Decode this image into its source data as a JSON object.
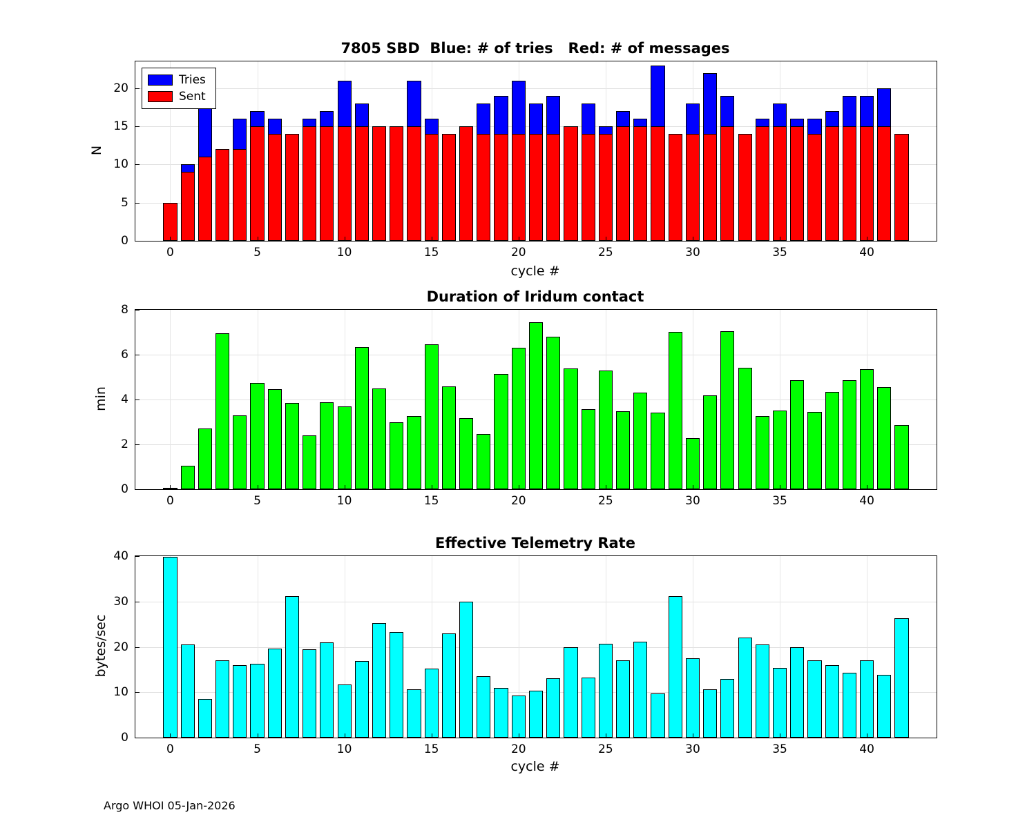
{
  "footer": "Argo WHOI 05-Jan-2026",
  "chart_data": [
    {
      "type": "bar",
      "bar_mode": "overlay",
      "title": "7805 SBD  Blue: # of tries   Red: # of messages",
      "xlabel": "cycle #",
      "ylabel": "N",
      "grid": true,
      "legend_position": "top-left",
      "xlim": [
        -2,
        44
      ],
      "ylim": [
        0,
        23.5
      ],
      "xticks": [
        0,
        5,
        10,
        15,
        20,
        25,
        30,
        35,
        40
      ],
      "yticks": [
        0,
        5,
        10,
        15,
        20
      ],
      "x": [
        0,
        1,
        2,
        3,
        4,
        5,
        6,
        7,
        8,
        9,
        10,
        11,
        12,
        13,
        14,
        15,
        16,
        17,
        18,
        19,
        20,
        21,
        22,
        23,
        24,
        25,
        26,
        27,
        28,
        29,
        30,
        31,
        32,
        33,
        34,
        35,
        36,
        37,
        38,
        39,
        40,
        41,
        42
      ],
      "series": [
        {
          "name": "Tries",
          "color": "#0000FF",
          "values": [
            5,
            10,
            19,
            12,
            16,
            17,
            16,
            14,
            16,
            17,
            21,
            18,
            15,
            15,
            21,
            16,
            14,
            15,
            18,
            19,
            21,
            18,
            19,
            15,
            18,
            15,
            17,
            16,
            23,
            14,
            18,
            22,
            19,
            14,
            16,
            18,
            16,
            16,
            17,
            19,
            19,
            20,
            14
          ]
        },
        {
          "name": "Sent",
          "color": "#FF0000",
          "values": [
            5,
            9,
            11,
            12,
            12,
            15,
            14,
            14,
            15,
            15,
            15,
            15,
            15,
            15,
            15,
            14,
            14,
            15,
            14,
            14,
            14,
            14,
            14,
            15,
            14,
            14,
            15,
            15,
            15,
            14,
            14,
            14,
            15,
            14,
            15,
            15,
            15,
            14,
            15,
            15,
            15,
            15,
            14
          ]
        }
      ]
    },
    {
      "type": "bar",
      "title": "Duration of Iridum contact",
      "xlabel": "",
      "ylabel": "min",
      "grid": true,
      "xlim": [
        -2,
        44
      ],
      "ylim": [
        0,
        8
      ],
      "xticks": [
        0,
        5,
        10,
        15,
        20,
        25,
        30,
        35,
        40
      ],
      "yticks": [
        0,
        2,
        4,
        6,
        8
      ],
      "x": [
        0,
        1,
        2,
        3,
        4,
        5,
        6,
        7,
        8,
        9,
        10,
        11,
        12,
        13,
        14,
        15,
        16,
        17,
        18,
        19,
        20,
        21,
        22,
        23,
        24,
        25,
        26,
        27,
        28,
        29,
        30,
        31,
        32,
        33,
        34,
        35,
        36,
        37,
        38,
        39,
        40,
        41,
        42
      ],
      "series": [
        {
          "name": "Duration",
          "color": "#00FF00",
          "values": [
            0.05,
            1.05,
            2.7,
            6.95,
            3.3,
            4.75,
            4.45,
            3.85,
            2.4,
            3.87,
            3.68,
            6.35,
            4.5,
            3.0,
            3.25,
            6.45,
            4.58,
            3.18,
            2.45,
            5.15,
            6.3,
            7.45,
            6.8,
            5.38,
            3.58,
            5.3,
            3.48,
            4.3,
            3.42,
            7.02,
            2.28,
            4.18,
            7.05,
            5.42,
            3.25,
            3.5,
            4.85,
            3.45,
            4.35,
            4.85,
            5.35,
            4.55,
            2.85
          ]
        }
      ]
    },
    {
      "type": "bar",
      "title": "Effective Telemetry Rate",
      "xlabel": "cycle #",
      "ylabel": "bytes/sec",
      "grid": true,
      "xlim": [
        -2,
        44
      ],
      "ylim": [
        0,
        40
      ],
      "xticks": [
        0,
        5,
        10,
        15,
        20,
        25,
        30,
        35,
        40
      ],
      "yticks": [
        0,
        10,
        20,
        30,
        40
      ],
      "x": [
        0,
        1,
        2,
        3,
        4,
        5,
        6,
        7,
        8,
        9,
        10,
        11,
        12,
        13,
        14,
        15,
        16,
        17,
        18,
        19,
        20,
        21,
        22,
        23,
        24,
        25,
        26,
        27,
        28,
        29,
        30,
        31,
        32,
        33,
        34,
        35,
        36,
        37,
        38,
        39,
        40,
        41,
        42
      ],
      "series": [
        {
          "name": "Rate",
          "color": "#00FFFF",
          "values": [
            39.9,
            20.5,
            8.5,
            17.0,
            16.0,
            16.2,
            19.6,
            31.2,
            19.4,
            21.0,
            11.7,
            16.9,
            25.3,
            23.2,
            10.7,
            15.2,
            23.0,
            30.0,
            13.5,
            10.9,
            9.3,
            10.3,
            13.1,
            20.0,
            13.2,
            20.7,
            17.0,
            21.2,
            9.8,
            31.2,
            17.5,
            10.6,
            13.0,
            22.1,
            20.6,
            15.3,
            20.0,
            17.0,
            15.9,
            14.3,
            17.0,
            13.9,
            26.3
          ]
        }
      ]
    }
  ]
}
